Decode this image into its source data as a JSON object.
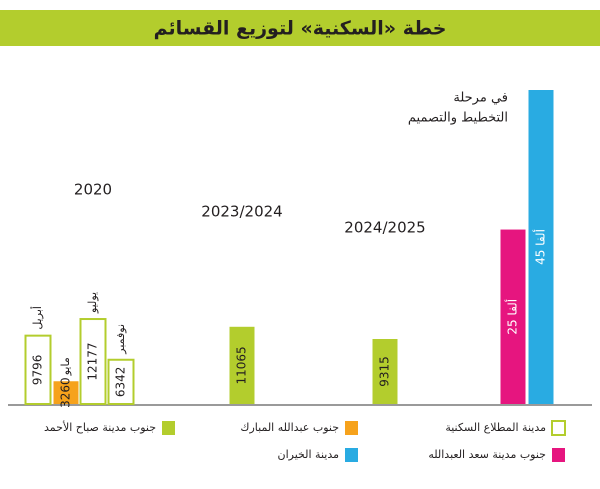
{
  "chart_data": {
    "type": "bar",
    "title": "خطة «السكنية» لتوزيع القسائم",
    "categories": [
      "أبريل",
      "مايو",
      "يوليو",
      "نوفمبر",
      null,
      null,
      null,
      null
    ],
    "groups": [
      "2020",
      "2023/2024",
      "2024/2025"
    ],
    "note": [
      "في مرحلة",
      "التخطيط والتصميم"
    ],
    "series": [
      {
        "name": "مدينة المطلاع السكنية",
        "color": "#b3cd2d",
        "filled": false,
        "values": [
          9796,
          null,
          12177,
          6342,
          null,
          null,
          null,
          null
        ]
      },
      {
        "name": "جنوب عبدالله المبارك",
        "color": "#f6a21c",
        "filled": true,
        "values": [
          null,
          3260,
          null,
          null,
          null,
          null,
          null,
          null
        ]
      },
      {
        "name": "جنوب مدينة صباح الأحمد",
        "color": "#b3cd2d",
        "filled": true,
        "values": [
          null,
          null,
          null,
          null,
          11065,
          9315,
          null,
          null
        ]
      },
      {
        "name": "جنوب مدينة سعد العبدالله",
        "color": "#e6157f",
        "filled": true,
        "values": [
          null,
          null,
          null,
          null,
          null,
          null,
          25000,
          null
        ],
        "value_labels": [
          null,
          null,
          null,
          null,
          null,
          null,
          "25 ألفا",
          null
        ]
      },
      {
        "name": "مدينة الخيران",
        "color": "#29abe2",
        "filled": true,
        "values": [
          null,
          null,
          null,
          null,
          null,
          null,
          null,
          45000
        ],
        "value_labels": [
          null,
          null,
          null,
          null,
          null,
          null,
          null,
          "45 ألفا"
        ]
      }
    ]
  }
}
